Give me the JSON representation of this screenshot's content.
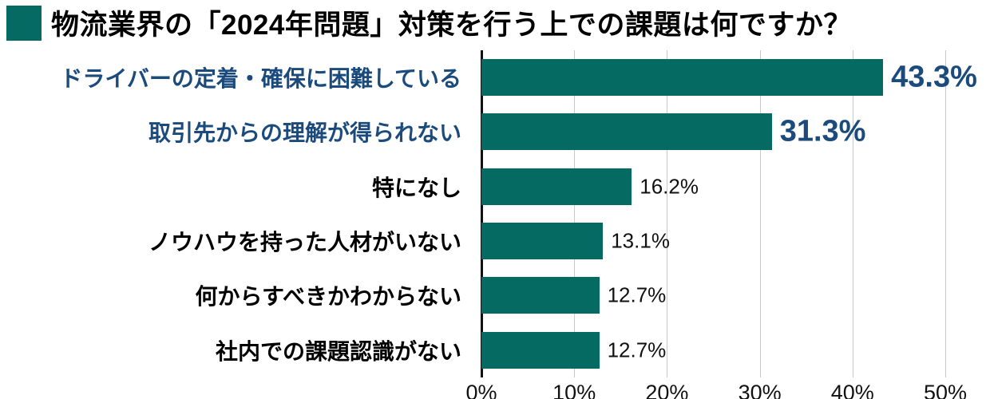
{
  "title": "物流業界の「2024年問題」対策を行う上での課題は何ですか？",
  "colors": {
    "bar": "#046A62",
    "highlight_text": "#1B4B7D",
    "text": "#111111",
    "gridline": "#C9C9C9",
    "axis": "#111111",
    "title_square": "#046A62",
    "background": "#FFFFFF"
  },
  "chart_data": {
    "type": "bar",
    "orientation": "horizontal",
    "title": "物流業界の「2024年問題」対策を行う上での課題は何ですか？",
    "categories": [
      "ドライバーの定着・確保に困難している",
      "取引先からの理解が得られない",
      "特になし",
      "ノウハウを持った人材がいない",
      "何からすべきかわからない",
      "社内での課題認識がない"
    ],
    "values": [
      43.3,
      31.3,
      16.2,
      13.1,
      12.7,
      12.7
    ],
    "value_labels": [
      "43.3%",
      "31.3%",
      "16.2%",
      "13.1%",
      "12.7%",
      "12.7%"
    ],
    "highlighted": [
      true,
      true,
      false,
      false,
      false,
      false
    ],
    "xlabel": "",
    "ylabel": "",
    "xlim": [
      0,
      50
    ],
    "xticks": [
      0,
      10,
      20,
      30,
      40,
      50
    ],
    "xtick_labels": [
      "0%",
      "10%",
      "20%",
      "30%",
      "40%",
      "50%"
    ],
    "grid": true,
    "legend": false
  }
}
